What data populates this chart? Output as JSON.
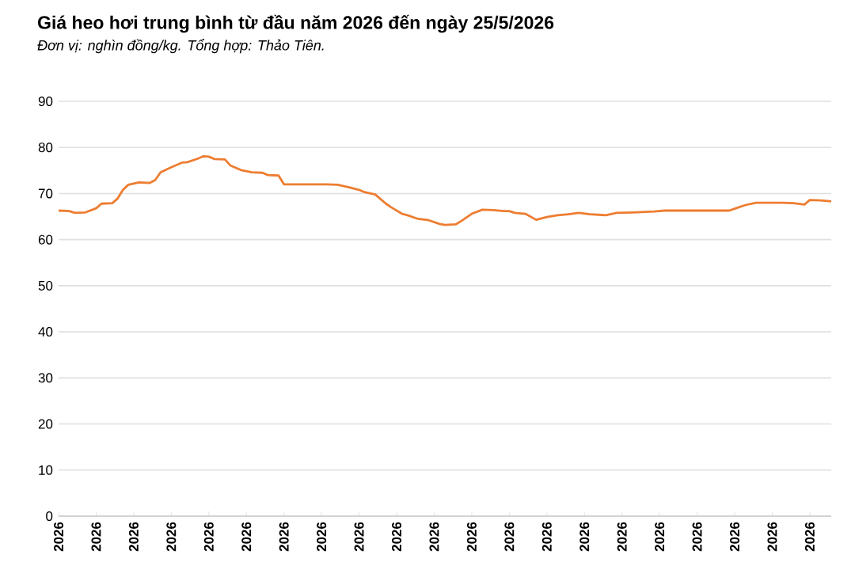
{
  "chart_data": {
    "type": "line",
    "title": "Giá heo hơi trung bình từ đầu năm 2026 đến ngày 25/5/2026",
    "subtitle": "Đơn vị: nghìn đồng/kg. Tổng hợp: Thảo Tiên.",
    "x": [
      "2026-01-01",
      "2026-01-03",
      "2026-01-04",
      "2026-01-06",
      "2026-01-08",
      "2026-01-09",
      "2026-01-11",
      "2026-01-12",
      "2026-01-13",
      "2026-01-14",
      "2026-01-16",
      "2026-01-18",
      "2026-01-19",
      "2026-01-20",
      "2026-01-22",
      "2026-01-24",
      "2026-01-25",
      "2026-01-27",
      "2026-01-28",
      "2026-01-29",
      "2026-01-30",
      "2026-02-01",
      "2026-02-02",
      "2026-02-04",
      "2026-02-06",
      "2026-02-08",
      "2026-02-09",
      "2026-02-11",
      "2026-02-12",
      "2026-02-14",
      "2026-02-20",
      "2026-02-22",
      "2026-02-24",
      "2026-02-26",
      "2026-02-27",
      "2026-03-01",
      "2026-03-03",
      "2026-03-04",
      "2026-03-06",
      "2026-03-07",
      "2026-03-09",
      "2026-03-11",
      "2026-03-13",
      "2026-03-14",
      "2026-03-16",
      "2026-03-17",
      "2026-03-19",
      "2026-03-21",
      "2026-03-23",
      "2026-03-25",
      "2026-03-26",
      "2026-03-27",
      "2026-03-29",
      "2026-03-31",
      "2026-04-02",
      "2026-04-04",
      "2026-04-06",
      "2026-04-08",
      "2026-04-10",
      "2026-04-13",
      "2026-04-15",
      "2026-04-18",
      "2026-04-22",
      "2026-04-24",
      "2026-04-28",
      "2026-05-06",
      "2026-05-07",
      "2026-05-09",
      "2026-05-11",
      "2026-05-16",
      "2026-05-18",
      "2026-05-20",
      "2026-05-21",
      "2026-05-23",
      "2026-05-25"
    ],
    "values": [
      66.3,
      66.2,
      65.8,
      65.9,
      66.8,
      67.8,
      67.9,
      68.9,
      70.8,
      71.9,
      72.4,
      72.3,
      72.9,
      74.6,
      75.7,
      76.7,
      76.8,
      77.6,
      78.1,
      78.0,
      77.5,
      77.4,
      76.1,
      75.1,
      74.6,
      74.5,
      74.0,
      73.9,
      72.0,
      72.0,
      72.0,
      71.9,
      71.4,
      70.8,
      70.3,
      69.8,
      67.8,
      67.0,
      65.6,
      65.3,
      64.5,
      64.2,
      63.4,
      63.2,
      63.3,
      64.0,
      65.6,
      66.5,
      66.4,
      66.2,
      66.2,
      65.8,
      65.6,
      64.3,
      64.9,
      65.3,
      65.5,
      65.8,
      65.5,
      65.3,
      65.8,
      65.9,
      66.1,
      66.3,
      66.3,
      66.3,
      66.7,
      67.5,
      68.0,
      68.0,
      67.9,
      67.6,
      68.6,
      68.5,
      68.3
    ],
    "color": "#ed7d31",
    "xlim": [
      "2026-01-01",
      "2026-05-25"
    ],
    "xticks": [
      {
        "value": "2026-01-01",
        "label": "2026"
      },
      {
        "value": "2026-01-08",
        "label": "2026"
      },
      {
        "value": "2026-01-15",
        "label": "2026"
      },
      {
        "value": "2026-01-22",
        "label": "2026"
      },
      {
        "value": "2026-01-29",
        "label": "2026"
      },
      {
        "value": "2026-02-05",
        "label": "2026"
      },
      {
        "value": "2026-02-12",
        "label": "2026"
      },
      {
        "value": "2026-02-19",
        "label": "2026"
      },
      {
        "value": "2026-02-26",
        "label": "2026"
      },
      {
        "value": "2026-03-05",
        "label": "2026"
      },
      {
        "value": "2026-03-12",
        "label": "2026"
      },
      {
        "value": "2026-03-19",
        "label": "2026"
      },
      {
        "value": "2026-03-26",
        "label": "2026"
      },
      {
        "value": "2026-04-02",
        "label": "2026"
      },
      {
        "value": "2026-04-09",
        "label": "2026"
      },
      {
        "value": "2026-04-16",
        "label": "2026"
      },
      {
        "value": "2026-04-23",
        "label": "2026"
      },
      {
        "value": "2026-04-30",
        "label": "2026"
      },
      {
        "value": "2026-05-07",
        "label": "2026"
      },
      {
        "value": "2026-05-14",
        "label": "2026"
      },
      {
        "value": "2026-05-21",
        "label": "2026"
      }
    ],
    "ylim": [
      0,
      90
    ],
    "yticks": [
      0,
      10,
      20,
      30,
      40,
      50,
      60,
      70,
      80,
      90
    ],
    "grid": "y",
    "line_style": "solid"
  }
}
